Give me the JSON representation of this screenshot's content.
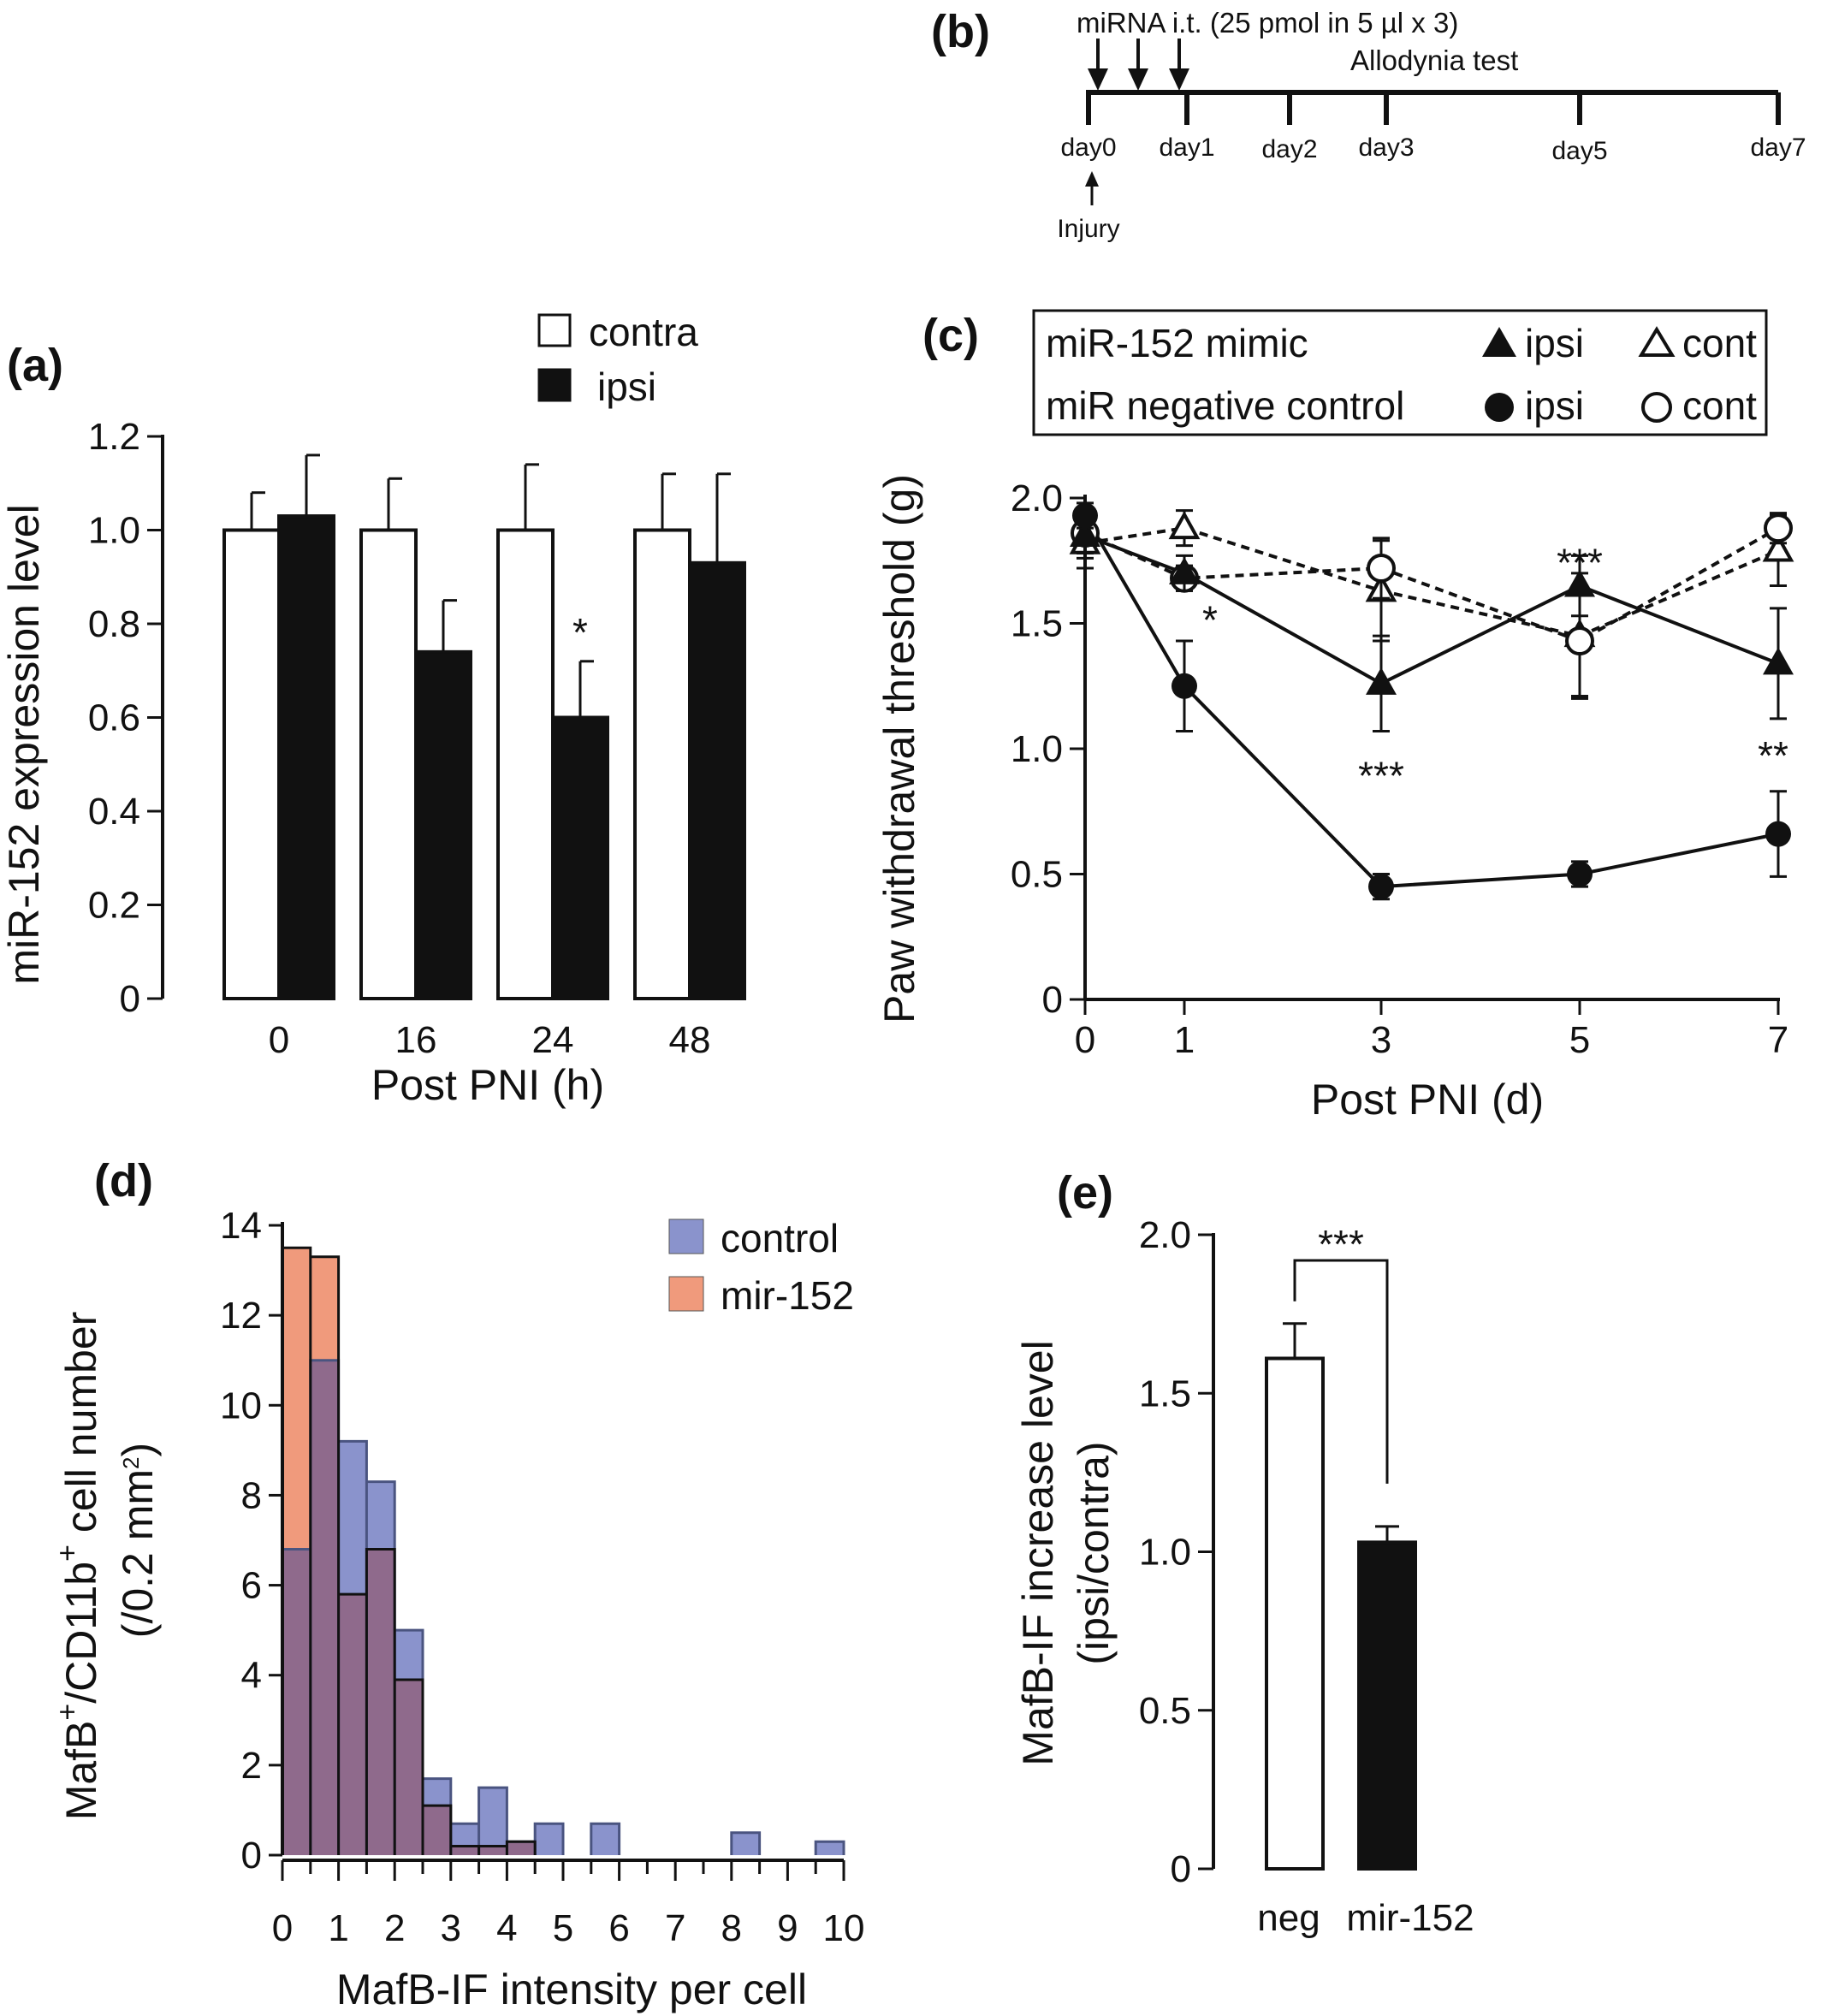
{
  "panel_labels": {
    "a": "(a)",
    "b": "(b)",
    "c": "(c)",
    "d": "(d)",
    "e": "(e)"
  },
  "chart_data": [
    {
      "id": "a",
      "type": "bar",
      "categories": [
        "0",
        "16",
        "24",
        "48"
      ],
      "series": [
        {
          "name": "contra",
          "values": [
            1.0,
            1.0,
            1.0,
            1.0
          ],
          "errors": [
            0.08,
            0.11,
            0.14,
            0.12
          ],
          "color": "#ffffff"
        },
        {
          "name": "ipsi",
          "values": [
            1.03,
            0.74,
            0.6,
            0.93
          ],
          "errors": [
            0.13,
            0.11,
            0.12,
            0.19
          ],
          "color": "#111111"
        }
      ],
      "annotations": [
        {
          "category": "24",
          "text": "*"
        }
      ],
      "xlabel": "Post PNI (h)",
      "ylabel": "miR-152 expression level",
      "ylim": [
        0,
        1.2
      ],
      "yticks": [
        "0",
        "0.2",
        "0.4",
        "0.6",
        "0.8",
        "1.0",
        "1.2"
      ]
    },
    {
      "id": "b",
      "type": "diagram",
      "header": "miRNA i.t. (25 pmol in 5 µl x 3)",
      "test_label": "Allodynia test",
      "day_labels": [
        "day0",
        "day1",
        "day2",
        "day3",
        "day5",
        "day7"
      ],
      "injury_label": "Injury"
    },
    {
      "id": "c",
      "type": "line",
      "x": [
        0,
        1,
        3,
        5,
        7
      ],
      "xticks": [
        "0",
        "1",
        "3",
        "5",
        "7"
      ],
      "series": [
        {
          "name": "ipsi",
          "group": "miR-152 mimic",
          "marker": "triangle-filled",
          "style": "solid",
          "values": [
            1.85,
            1.7,
            1.26,
            1.65,
            1.34
          ],
          "errors": [
            0.09,
            0.07,
            0.19,
            0.12,
            0.22
          ]
        },
        {
          "name": "cont",
          "group": "miR-152 mimic",
          "marker": "triangle-open",
          "style": "dashed",
          "values": [
            1.82,
            1.88,
            1.63,
            1.45,
            1.79
          ],
          "errors": [
            0.1,
            0.07,
            0.2,
            0.25,
            0.14
          ]
        },
        {
          "name": "ipsi",
          "group": "miR negative control",
          "marker": "circle-filled",
          "style": "solid",
          "values": [
            1.93,
            1.25,
            0.45,
            0.5,
            0.66
          ],
          "errors": [
            0.05,
            0.18,
            0.05,
            0.05,
            0.17
          ]
        },
        {
          "name": "cont",
          "group": "miR negative control",
          "marker": "circle-open",
          "style": "dashed",
          "values": [
            1.86,
            1.68,
            1.72,
            1.43,
            1.88
          ],
          "errors": [
            0.08,
            0.05,
            0.12,
            0.22,
            0.06
          ]
        }
      ],
      "legend_rows": [
        {
          "group": "miR-152 mimic",
          "filled": "ipsi",
          "open": "cont"
        },
        {
          "group": "miR negative control",
          "filled": "ipsi",
          "open": "cont"
        }
      ],
      "annotations": [
        {
          "x": 1,
          "y": 1.52,
          "text": "*"
        },
        {
          "x": 3,
          "y": 0.9,
          "text": "***"
        },
        {
          "x": 5,
          "y": 1.75,
          "text": "***"
        },
        {
          "x": 7,
          "y": 0.98,
          "text": "**"
        }
      ],
      "xlabel": "Post PNI (d)",
      "ylabel": "Paw withdrawal threshold (g)",
      "ylim": [
        0,
        2.0
      ],
      "yticks": [
        "0",
        "0.5",
        "1.0",
        "1.5",
        "2.0"
      ]
    },
    {
      "id": "d",
      "type": "histogram",
      "bin_width": 0.5,
      "series": [
        {
          "name": "control",
          "color": "#8a93cc",
          "values": [
            6.8,
            11.0,
            9.2,
            8.3,
            5.0,
            1.7,
            0.7,
            1.5,
            0.3,
            0.7,
            0,
            0.7,
            0,
            0,
            0,
            0,
            0.5,
            0,
            0,
            0.3
          ]
        },
        {
          "name": "mir-152",
          "color": "#f09a7c",
          "values": [
            13.5,
            13.3,
            5.8,
            6.8,
            3.9,
            1.1,
            0.2,
            0.2,
            0.3,
            0,
            0,
            0,
            0,
            0,
            0,
            0,
            0,
            0,
            0,
            0
          ]
        }
      ],
      "overlap_color": "#8f6a8c",
      "xlabel": "MafB-IF intensity per cell",
      "ylabel_main": "MafB",
      "ylabel_sup1": "+",
      "ylabel_mid": "/CD11b",
      "ylabel_sup2": "+",
      "ylabel_end": " cell number",
      "ylabel2_main": "(/0.2 mm",
      "ylabel2_sup": "2",
      "ylabel2_end": ")",
      "xlim": [
        0,
        10
      ],
      "ylim": [
        0,
        14
      ],
      "xticks": [
        "0",
        "1",
        "2",
        "3",
        "4",
        "5",
        "6",
        "7",
        "8",
        "9",
        "10"
      ],
      "yticks": [
        "0",
        "2",
        "4",
        "6",
        "8",
        "10",
        "12",
        "14"
      ]
    },
    {
      "id": "e",
      "type": "bar",
      "categories": [
        "neg",
        "mir-152"
      ],
      "values": [
        1.61,
        1.03
      ],
      "errors": [
        0.11,
        0.05
      ],
      "colors": [
        "#ffffff",
        "#111111"
      ],
      "annotation": "***",
      "ylabel": "MafB-IF increase level",
      "ylabel2": "(ipsi/contra)",
      "ylim": [
        0,
        2.0
      ],
      "yticks": [
        "0",
        "0.5",
        "1.0",
        "1.5",
        "2.0"
      ]
    }
  ]
}
